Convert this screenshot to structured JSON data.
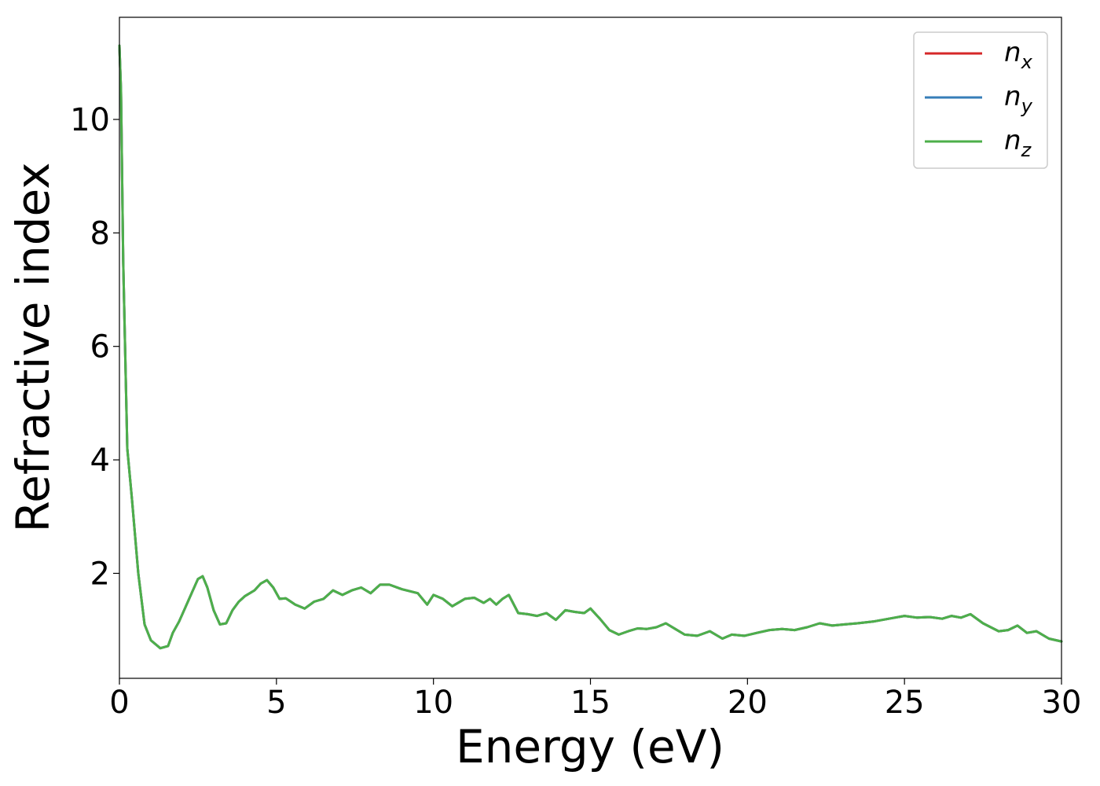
{
  "chart_data": {
    "type": "line",
    "xlabel": "Energy (eV)",
    "ylabel": "Refractive index",
    "xlim": [
      0,
      30
    ],
    "ylim": [
      0.15,
      11.8
    ],
    "xticks": [
      0,
      5,
      10,
      15,
      20,
      25,
      30
    ],
    "yticks": [
      2,
      4,
      6,
      8,
      10
    ],
    "grid": false,
    "legend_position": "top-right",
    "series": [
      {
        "name": "n_x",
        "legend_base": "n",
        "legend_sub": "x",
        "color": "#d62728",
        "x": [
          0.0,
          0.05,
          0.12,
          0.25,
          0.4,
          0.6,
          0.8,
          1.0,
          1.3,
          1.55,
          1.7,
          1.9,
          2.1,
          2.3,
          2.5,
          2.65,
          2.8,
          3.0,
          3.2,
          3.4,
          3.6,
          3.8,
          4.0,
          4.3,
          4.5,
          4.7,
          4.9,
          5.1,
          5.3,
          5.6,
          5.9,
          6.2,
          6.5,
          6.8,
          7.1,
          7.4,
          7.7,
          8.0,
          8.3,
          8.6,
          9.0,
          9.5,
          9.8,
          10.0,
          10.3,
          10.6,
          11.0,
          11.3,
          11.6,
          11.8,
          12.0,
          12.2,
          12.4,
          12.7,
          13.0,
          13.3,
          13.6,
          13.9,
          14.2,
          14.5,
          14.8,
          15.0,
          15.3,
          15.6,
          15.9,
          16.2,
          16.5,
          16.8,
          17.1,
          17.4,
          17.7,
          18.0,
          18.4,
          18.8,
          19.2,
          19.5,
          19.9,
          20.3,
          20.7,
          21.1,
          21.5,
          21.9,
          22.3,
          22.7,
          23.1,
          23.5,
          24.0,
          24.5,
          25.0,
          25.4,
          25.8,
          26.2,
          26.5,
          26.8,
          27.1,
          27.5,
          28.0,
          28.3,
          28.6,
          28.9,
          29.2,
          29.6,
          30.0
        ],
        "y": [
          11.3,
          10.5,
          7.5,
          4.2,
          3.3,
          2.0,
          1.1,
          0.82,
          0.68,
          0.72,
          0.95,
          1.15,
          1.4,
          1.65,
          1.9,
          1.95,
          1.75,
          1.35,
          1.1,
          1.12,
          1.35,
          1.5,
          1.6,
          1.7,
          1.82,
          1.88,
          1.75,
          1.55,
          1.56,
          1.45,
          1.38,
          1.5,
          1.55,
          1.7,
          1.62,
          1.7,
          1.75,
          1.65,
          1.8,
          1.8,
          1.72,
          1.65,
          1.45,
          1.62,
          1.55,
          1.42,
          1.55,
          1.57,
          1.48,
          1.55,
          1.45,
          1.55,
          1.62,
          1.3,
          1.28,
          1.25,
          1.3,
          1.18,
          1.35,
          1.32,
          1.3,
          1.38,
          1.2,
          1.0,
          0.92,
          0.98,
          1.03,
          1.02,
          1.05,
          1.12,
          1.02,
          0.92,
          0.9,
          0.98,
          0.85,
          0.92,
          0.9,
          0.95,
          1.0,
          1.02,
          1.0,
          1.05,
          1.12,
          1.08,
          1.1,
          1.12,
          1.15,
          1.2,
          1.25,
          1.22,
          1.23,
          1.2,
          1.25,
          1.22,
          1.28,
          1.12,
          0.98,
          1.0,
          1.08,
          0.95,
          0.98,
          0.85,
          0.8
        ]
      },
      {
        "name": "n_y",
        "legend_base": "n",
        "legend_sub": "y",
        "color": "#377eb8",
        "x": [
          0.0,
          0.05,
          0.12,
          0.25,
          0.4,
          0.6,
          0.8,
          1.0,
          1.3,
          1.55,
          1.7,
          1.9,
          2.1,
          2.3,
          2.5,
          2.65,
          2.8,
          3.0,
          3.2,
          3.4,
          3.6,
          3.8,
          4.0,
          4.3,
          4.5,
          4.7,
          4.9,
          5.1,
          5.3,
          5.6,
          5.9,
          6.2,
          6.5,
          6.8,
          7.1,
          7.4,
          7.7,
          8.0,
          8.3,
          8.6,
          9.0,
          9.5,
          9.8,
          10.0,
          10.3,
          10.6,
          11.0,
          11.3,
          11.6,
          11.8,
          12.0,
          12.2,
          12.4,
          12.7,
          13.0,
          13.3,
          13.6,
          13.9,
          14.2,
          14.5,
          14.8,
          15.0,
          15.3,
          15.6,
          15.9,
          16.2,
          16.5,
          16.8,
          17.1,
          17.4,
          17.7,
          18.0,
          18.4,
          18.8,
          19.2,
          19.5,
          19.9,
          20.3,
          20.7,
          21.1,
          21.5,
          21.9,
          22.3,
          22.7,
          23.1,
          23.5,
          24.0,
          24.5,
          25.0,
          25.4,
          25.8,
          26.2,
          26.5,
          26.8,
          27.1,
          27.5,
          28.0,
          28.3,
          28.6,
          28.9,
          29.2,
          29.6,
          30.0
        ],
        "y": [
          11.3,
          10.5,
          7.5,
          4.2,
          3.3,
          2.0,
          1.1,
          0.82,
          0.68,
          0.72,
          0.95,
          1.15,
          1.4,
          1.65,
          1.9,
          1.95,
          1.75,
          1.35,
          1.1,
          1.12,
          1.35,
          1.5,
          1.6,
          1.7,
          1.82,
          1.88,
          1.75,
          1.55,
          1.56,
          1.45,
          1.38,
          1.5,
          1.55,
          1.7,
          1.62,
          1.7,
          1.75,
          1.65,
          1.8,
          1.8,
          1.72,
          1.65,
          1.45,
          1.62,
          1.55,
          1.42,
          1.55,
          1.57,
          1.48,
          1.55,
          1.45,
          1.55,
          1.62,
          1.3,
          1.28,
          1.25,
          1.3,
          1.18,
          1.35,
          1.32,
          1.3,
          1.38,
          1.2,
          1.0,
          0.92,
          0.98,
          1.03,
          1.02,
          1.05,
          1.12,
          1.02,
          0.92,
          0.9,
          0.98,
          0.85,
          0.92,
          0.9,
          0.95,
          1.0,
          1.02,
          1.0,
          1.05,
          1.12,
          1.08,
          1.1,
          1.12,
          1.15,
          1.2,
          1.25,
          1.22,
          1.23,
          1.2,
          1.25,
          1.22,
          1.28,
          1.12,
          0.98,
          1.0,
          1.08,
          0.95,
          0.98,
          0.85,
          0.8
        ]
      },
      {
        "name": "n_z",
        "legend_base": "n",
        "legend_sub": "z",
        "color": "#4daf4a",
        "x": [
          0.0,
          0.05,
          0.12,
          0.25,
          0.4,
          0.6,
          0.8,
          1.0,
          1.3,
          1.55,
          1.7,
          1.9,
          2.1,
          2.3,
          2.5,
          2.65,
          2.8,
          3.0,
          3.2,
          3.4,
          3.6,
          3.8,
          4.0,
          4.3,
          4.5,
          4.7,
          4.9,
          5.1,
          5.3,
          5.6,
          5.9,
          6.2,
          6.5,
          6.8,
          7.1,
          7.4,
          7.7,
          8.0,
          8.3,
          8.6,
          9.0,
          9.5,
          9.8,
          10.0,
          10.3,
          10.6,
          11.0,
          11.3,
          11.6,
          11.8,
          12.0,
          12.2,
          12.4,
          12.7,
          13.0,
          13.3,
          13.6,
          13.9,
          14.2,
          14.5,
          14.8,
          15.0,
          15.3,
          15.6,
          15.9,
          16.2,
          16.5,
          16.8,
          17.1,
          17.4,
          17.7,
          18.0,
          18.4,
          18.8,
          19.2,
          19.5,
          19.9,
          20.3,
          20.7,
          21.1,
          21.5,
          21.9,
          22.3,
          22.7,
          23.1,
          23.5,
          24.0,
          24.5,
          25.0,
          25.4,
          25.8,
          26.2,
          26.5,
          26.8,
          27.1,
          27.5,
          28.0,
          28.3,
          28.6,
          28.9,
          29.2,
          29.6,
          30.0
        ],
        "y": [
          11.3,
          10.5,
          7.5,
          4.2,
          3.3,
          2.0,
          1.1,
          0.82,
          0.68,
          0.72,
          0.95,
          1.15,
          1.4,
          1.65,
          1.9,
          1.95,
          1.75,
          1.35,
          1.1,
          1.12,
          1.35,
          1.5,
          1.6,
          1.7,
          1.82,
          1.88,
          1.75,
          1.55,
          1.56,
          1.45,
          1.38,
          1.5,
          1.55,
          1.7,
          1.62,
          1.7,
          1.75,
          1.65,
          1.8,
          1.8,
          1.72,
          1.65,
          1.45,
          1.62,
          1.55,
          1.42,
          1.55,
          1.57,
          1.48,
          1.55,
          1.45,
          1.55,
          1.62,
          1.3,
          1.28,
          1.25,
          1.3,
          1.18,
          1.35,
          1.32,
          1.3,
          1.38,
          1.2,
          1.0,
          0.92,
          0.98,
          1.03,
          1.02,
          1.05,
          1.12,
          1.02,
          0.92,
          0.9,
          0.98,
          0.85,
          0.92,
          0.9,
          0.95,
          1.0,
          1.02,
          1.0,
          1.05,
          1.12,
          1.08,
          1.1,
          1.12,
          1.15,
          1.2,
          1.25,
          1.22,
          1.23,
          1.2,
          1.25,
          1.22,
          1.28,
          1.12,
          0.98,
          1.0,
          1.08,
          0.95,
          0.98,
          0.85,
          0.8
        ]
      }
    ]
  }
}
